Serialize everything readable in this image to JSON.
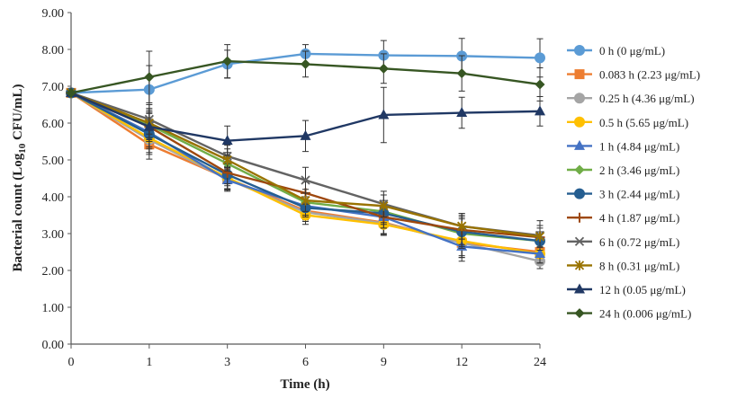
{
  "chart_data": {
    "type": "line",
    "title": "",
    "xlabel": "Time (h)",
    "ylabel_prefix": "Bacterial count (Log",
    "ylabel_sub": "10",
    "ylabel_suffix": " CFU/mL)",
    "x": [
      "0",
      "1",
      "3",
      "6",
      "9",
      "12",
      "24"
    ],
    "y_ticks": [
      "0.00",
      "1.00",
      "2.00",
      "3.00",
      "4.00",
      "5.00",
      "6.00",
      "7.00",
      "8.00",
      "9.00"
    ],
    "ylim": [
      0,
      9
    ],
    "grid": false,
    "legend_position": "right",
    "series": [
      {
        "name": "0 h (0 μg/mL)",
        "color": "#5B9BD5",
        "marker": "circle",
        "values": [
          6.82,
          6.91,
          7.6,
          7.88,
          7.84,
          7.82,
          7.77
        ],
        "errors": [
          0.05,
          0.65,
          0.38,
          0.25,
          0.4,
          0.48,
          0.52
        ]
      },
      {
        "name": "0.083 h (2.23 μg/mL)",
        "color": "#ED7D31",
        "marker": "square",
        "values": [
          6.82,
          5.42,
          4.5,
          3.62,
          3.3,
          2.75,
          2.5
        ],
        "errors": [
          0.05,
          0.4,
          0.3,
          0.25,
          0.3,
          0.4,
          0.3
        ]
      },
      {
        "name": "0.25 h (4.36 μg/mL)",
        "color": "#A5A5A5",
        "marker": "circle",
        "values": [
          6.82,
          5.55,
          4.48,
          3.58,
          3.28,
          2.75,
          2.25
        ],
        "errors": [
          0.05,
          0.4,
          0.3,
          0.25,
          0.3,
          0.4,
          0.2
        ]
      },
      {
        "name": "0.5 h (5.65 μg/mL)",
        "color": "#FFC000",
        "marker": "circle",
        "values": [
          6.82,
          5.6,
          4.52,
          3.5,
          3.25,
          2.8,
          2.45
        ],
        "errors": [
          0.05,
          0.4,
          0.3,
          0.25,
          0.3,
          0.4,
          0.25
        ]
      },
      {
        "name": "1 h (4.84 μg/mL)",
        "color": "#4472C4",
        "marker": "triangle",
        "values": [
          6.82,
          5.75,
          4.45,
          3.75,
          3.45,
          2.65,
          2.45
        ],
        "errors": [
          0.05,
          0.4,
          0.3,
          0.25,
          0.3,
          0.4,
          0.25
        ]
      },
      {
        "name": "2 h (3.46 μg/mL)",
        "color": "#70AD47",
        "marker": "diamond",
        "values": [
          6.82,
          5.95,
          4.9,
          3.85,
          3.6,
          3.0,
          2.8
        ],
        "errors": [
          0.05,
          0.4,
          0.3,
          0.25,
          0.3,
          0.4,
          0.25
        ]
      },
      {
        "name": "3 h (2.44 μg/mL)",
        "color": "#255E91",
        "marker": "circle",
        "values": [
          6.82,
          5.7,
          4.6,
          3.7,
          3.55,
          3.05,
          2.8
        ],
        "errors": [
          0.05,
          0.4,
          0.3,
          0.25,
          0.3,
          0.4,
          0.25
        ]
      },
      {
        "name": "4 h (1.87 μg/mL)",
        "color": "#9E480E",
        "marker": "plus",
        "values": [
          6.82,
          5.9,
          4.65,
          4.1,
          3.45,
          3.1,
          2.9
        ],
        "errors": [
          0.05,
          0.4,
          0.3,
          0.3,
          0.3,
          0.4,
          0.25
        ]
      },
      {
        "name": "6 h (0.72 μg/mL)",
        "color": "#636363",
        "marker": "x",
        "values": [
          6.82,
          6.1,
          5.1,
          4.45,
          3.8,
          3.2,
          2.95
        ],
        "errors": [
          0.05,
          0.4,
          0.3,
          0.35,
          0.35,
          0.35,
          0.4
        ]
      },
      {
        "name": "8 h (0.31 μg/mL)",
        "color": "#997300",
        "marker": "star",
        "values": [
          6.82,
          6.0,
          5.0,
          3.9,
          3.75,
          3.2,
          2.92
        ],
        "errors": [
          0.05,
          0.4,
          0.3,
          0.3,
          0.3,
          0.35,
          0.3
        ]
      },
      {
        "name": "12 h (0.05 μg/mL)",
        "color": "#203864",
        "marker": "triangle",
        "values": [
          6.82,
          5.9,
          5.52,
          5.65,
          6.22,
          6.28,
          6.32
        ],
        "errors": [
          0.05,
          0.4,
          0.4,
          0.42,
          0.75,
          0.42,
          0.4
        ]
      },
      {
        "name": "24 h (0.006 μg/mL)",
        "color": "#375623",
        "marker": "diamond",
        "values": [
          6.82,
          7.25,
          7.68,
          7.6,
          7.48,
          7.35,
          7.05
        ],
        "errors": [
          0.05,
          0.7,
          0.45,
          0.35,
          0.4,
          0.48,
          0.45
        ]
      }
    ]
  }
}
